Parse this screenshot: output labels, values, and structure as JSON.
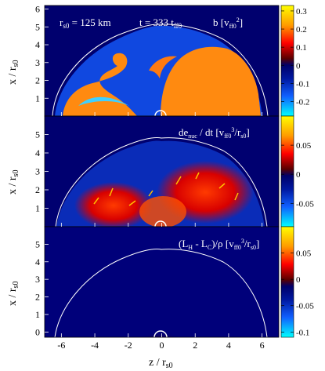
{
  "chart_data": {
    "type": "heatmap",
    "xlabel": "z / r",
    "xlabel_sub": "s0",
    "xticks": [
      "-6",
      "-4",
      "-2",
      "0",
      "2",
      "4",
      "6"
    ],
    "xtick_values": [
      -6,
      -4,
      -2,
      0,
      2,
      4,
      6
    ],
    "xlim": [
      -7,
      7
    ],
    "shared_colorscale_colors": [
      "#00ffff",
      "#0033c8",
      "#00007a",
      "#6a0000",
      "#ff0000",
      "#ffa000",
      "#ffff00"
    ],
    "panels": [
      {
        "id": "top",
        "ylabel": "x / r",
        "ylabel_sub": "s0",
        "yticks": [
          "1",
          "2",
          "3",
          "4",
          "5",
          "6"
        ],
        "ylim": [
          0,
          6.2
        ],
        "annotations": [
          {
            "main": "r",
            "sub": "s0",
            "rest": " = 125 km"
          },
          {
            "main": "t = 333 t",
            "sub": "ff0"
          },
          {
            "main": "b   [v",
            "sub": "ff0",
            "sup": "2",
            "rest": "]"
          }
        ],
        "colorbar": {
          "ticks": [
            "0.3",
            "0.2",
            "0.1",
            "0",
            "-0.1",
            "-0.2"
          ],
          "values": [
            0.3,
            0.2,
            0.1,
            0,
            -0.1,
            -0.2
          ],
          "range": [
            -0.28,
            0.33
          ]
        }
      },
      {
        "id": "middle",
        "ylabel": "x / r",
        "ylabel_sub": "s0",
        "yticks": [
          "1",
          "2",
          "3",
          "4",
          "5"
        ],
        "ylim": [
          0,
          6
        ],
        "annotations": [
          {
            "main": "de",
            "sub": "nuc",
            "rest": " / dt   [v",
            "sub2": "ff0",
            "sup": "3",
            "rest2": "/r",
            "sub3": "s0",
            "rest3": "]"
          }
        ],
        "colorbar": {
          "ticks": [
            "0.05",
            "0",
            "-0.05"
          ],
          "values": [
            0.05,
            0,
            -0.05
          ],
          "range": [
            -0.09,
            0.1
          ]
        }
      },
      {
        "id": "bottom",
        "ylabel": "x / r",
        "ylabel_sub": "s0",
        "yticks": [
          "0",
          "1",
          "2",
          "3",
          "4",
          "5"
        ],
        "ylim": [
          -0.3,
          6
        ],
        "annotations": [
          {
            "main": "(L",
            "sub": "H",
            "rest": " - L",
            "sub2": "C",
            "rest2": ")/ρ   [v",
            "sub3": "ff0",
            "sup": "3",
            "rest3": "/r",
            "sub4": "s0",
            "rest4": "]"
          }
        ],
        "colorbar": {
          "ticks": [
            "0.05",
            "0",
            "-0.05",
            "-0.1"
          ],
          "values": [
            0.05,
            0,
            -0.05,
            -0.1
          ],
          "range": [
            -0.11,
            0.1
          ]
        }
      }
    ]
  }
}
